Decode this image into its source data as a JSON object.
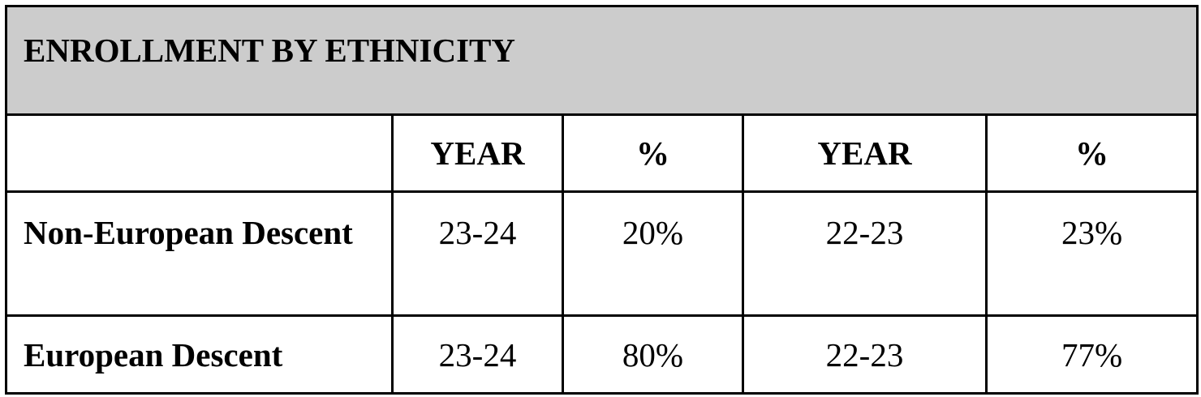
{
  "table": {
    "title": "ENROLLMENT BY ETHNICITY",
    "header": [
      "YEAR",
      "%",
      "YEAR",
      "%"
    ],
    "rows": [
      [
        "Non-European Descent",
        "23-24",
        "20%",
        "22-23",
        "23%"
      ],
      [
        "European Descent",
        "23-24",
        "80%",
        "22-23",
        "77%"
      ]
    ]
  }
}
